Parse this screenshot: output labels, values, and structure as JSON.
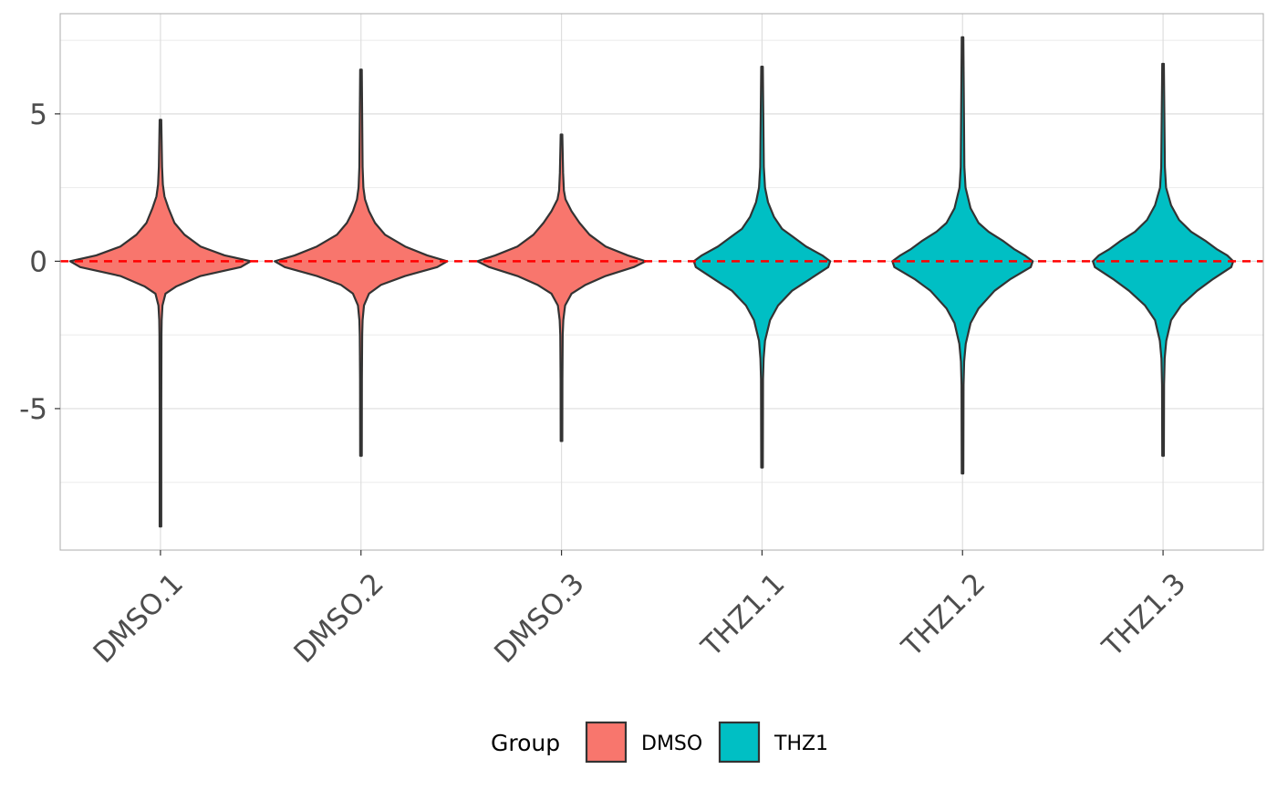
{
  "chart_data": {
    "type": "violin",
    "title": "",
    "xlabel": "",
    "ylabel": "",
    "categories": [
      "DMSO.1",
      "DMSO.2",
      "DMSO.3",
      "THZ1.1",
      "THZ1.2",
      "THZ1.3"
    ],
    "groups": [
      "DMSO",
      "DMSO",
      "DMSO",
      "THZ1",
      "THZ1",
      "THZ1"
    ],
    "ylim": [
      -9.8,
      8.4
    ],
    "yticks": [
      5,
      0,
      -5
    ],
    "ytick_labels": [
      "5",
      "0",
      "-5"
    ],
    "grid": true,
    "reference_line": {
      "y": 0,
      "color": "#ff0000",
      "style": "dashed"
    },
    "series": [
      {
        "category": "DMSO.1",
        "group": "DMSO",
        "min": -9.0,
        "max": 4.8,
        "profile": [
          [
            -9.0,
            0.4
          ],
          [
            -5.0,
            0.4
          ],
          [
            -2.5,
            0.5
          ],
          [
            -2.0,
            0.6
          ],
          [
            -1.5,
            1.0
          ],
          [
            -1.1,
            2.5
          ],
          [
            -0.85,
            8
          ],
          [
            -0.5,
            20
          ],
          [
            -0.2,
            40
          ],
          [
            0,
            45
          ],
          [
            0.2,
            32
          ],
          [
            0.5,
            20
          ],
          [
            0.9,
            12
          ],
          [
            1.3,
            7
          ],
          [
            1.8,
            4
          ],
          [
            2.2,
            2
          ],
          [
            2.6,
            1.2
          ],
          [
            3.2,
            0.8
          ],
          [
            4.8,
            0.4
          ]
        ]
      },
      {
        "category": "DMSO.2",
        "group": "DMSO",
        "min": -6.6,
        "max": 6.5,
        "profile": [
          [
            -6.6,
            0.4
          ],
          [
            -4.0,
            0.45
          ],
          [
            -2.5,
            0.6
          ],
          [
            -2.0,
            0.8
          ],
          [
            -1.5,
            1.5
          ],
          [
            -1.1,
            4
          ],
          [
            -0.8,
            10
          ],
          [
            -0.5,
            22
          ],
          [
            -0.2,
            38
          ],
          [
            0,
            43
          ],
          [
            0.2,
            33
          ],
          [
            0.5,
            22
          ],
          [
            0.9,
            12
          ],
          [
            1.3,
            7
          ],
          [
            1.7,
            4
          ],
          [
            2.1,
            2
          ],
          [
            2.5,
            1.2
          ],
          [
            3.2,
            0.8
          ],
          [
            6.5,
            0.4
          ]
        ]
      },
      {
        "category": "DMSO.3",
        "group": "DMSO",
        "min": -6.1,
        "max": 4.3,
        "profile": [
          [
            -6.1,
            0.4
          ],
          [
            -4.0,
            0.45
          ],
          [
            -2.5,
            0.6
          ],
          [
            -2.0,
            0.9
          ],
          [
            -1.5,
            1.8
          ],
          [
            -1.1,
            5
          ],
          [
            -0.8,
            12
          ],
          [
            -0.5,
            22
          ],
          [
            -0.2,
            36
          ],
          [
            0,
            42
          ],
          [
            0.2,
            33
          ],
          [
            0.5,
            22
          ],
          [
            0.9,
            14
          ],
          [
            1.3,
            9
          ],
          [
            1.7,
            5
          ],
          [
            2.1,
            2
          ],
          [
            2.4,
            1.2
          ],
          [
            3.0,
            0.8
          ],
          [
            4.3,
            0.4
          ]
        ]
      },
      {
        "category": "THZ1.1",
        "group": "THZ1",
        "min": -7.0,
        "max": 6.6,
        "profile": [
          [
            -7.0,
            0.4
          ],
          [
            -4.0,
            0.5
          ],
          [
            -3.3,
            0.8
          ],
          [
            -2.7,
            1.5
          ],
          [
            -2.0,
            4
          ],
          [
            -1.5,
            8
          ],
          [
            -1.0,
            15
          ],
          [
            -0.6,
            24
          ],
          [
            -0.2,
            33
          ],
          [
            0,
            34
          ],
          [
            0.2,
            30
          ],
          [
            0.5,
            22
          ],
          [
            0.8,
            16
          ],
          [
            1.1,
            10
          ],
          [
            1.5,
            6
          ],
          [
            2.0,
            3
          ],
          [
            2.5,
            1.5
          ],
          [
            3.2,
            0.9
          ],
          [
            6.6,
            0.4
          ]
        ]
      },
      {
        "category": "THZ1.2",
        "group": "THZ1",
        "min": -7.2,
        "max": 7.6,
        "profile": [
          [
            -7.2,
            0.4
          ],
          [
            -4.2,
            0.5
          ],
          [
            -3.4,
            0.8
          ],
          [
            -2.8,
            1.6
          ],
          [
            -2.1,
            4
          ],
          [
            -1.6,
            8
          ],
          [
            -1.0,
            16
          ],
          [
            -0.6,
            24
          ],
          [
            -0.2,
            34
          ],
          [
            0,
            35
          ],
          [
            0.2,
            31
          ],
          [
            0.4,
            26
          ],
          [
            0.7,
            20
          ],
          [
            1.0,
            13
          ],
          [
            1.3,
            8
          ],
          [
            1.8,
            4
          ],
          [
            2.5,
            1.5
          ],
          [
            3.2,
            0.9
          ],
          [
            7.6,
            0.4
          ]
        ]
      },
      {
        "category": "THZ1.3",
        "group": "THZ1",
        "min": -6.6,
        "max": 6.7,
        "profile": [
          [
            -6.6,
            0.4
          ],
          [
            -4.2,
            0.5
          ],
          [
            -3.3,
            0.8
          ],
          [
            -2.7,
            1.6
          ],
          [
            -2.0,
            4
          ],
          [
            -1.5,
            9
          ],
          [
            -1.0,
            17
          ],
          [
            -0.6,
            25
          ],
          [
            -0.2,
            34
          ],
          [
            0,
            35
          ],
          [
            0.2,
            32
          ],
          [
            0.4,
            27
          ],
          [
            0.7,
            21
          ],
          [
            1.0,
            14
          ],
          [
            1.4,
            8
          ],
          [
            1.9,
            4
          ],
          [
            2.5,
            1.5
          ],
          [
            3.2,
            0.9
          ],
          [
            6.7,
            0.4
          ]
        ]
      }
    ],
    "legend": {
      "title": "Group",
      "placement": "bottom",
      "entries": [
        {
          "label": "DMSO",
          "color": "#f8766d"
        },
        {
          "label": "THZ1",
          "color": "#00bfc4"
        }
      ]
    }
  }
}
